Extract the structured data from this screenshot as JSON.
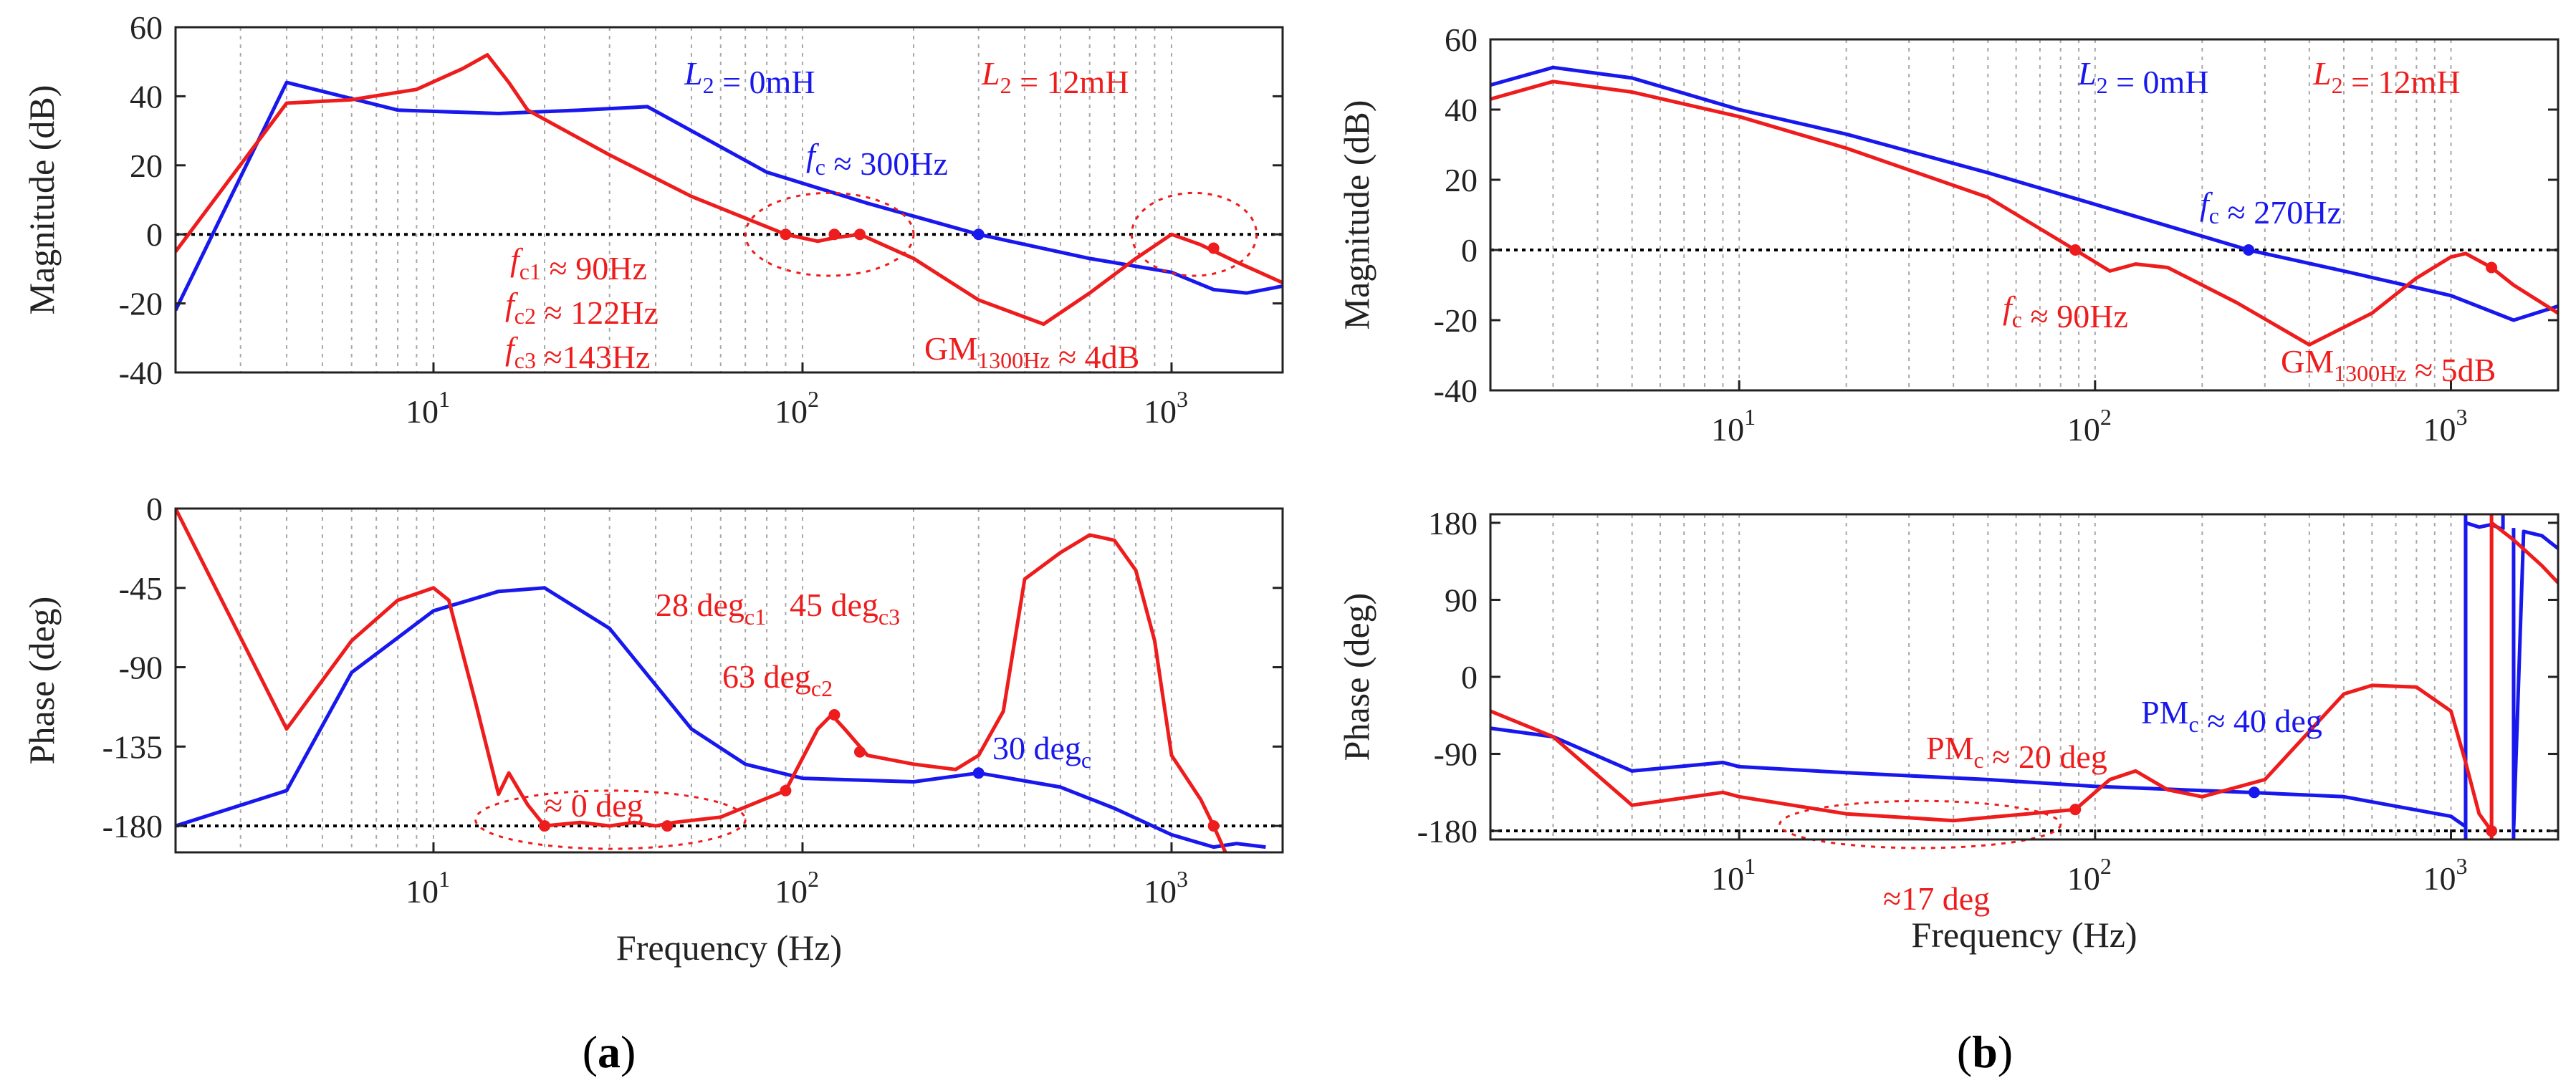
{
  "panels": [
    {
      "id": "a",
      "label_open": "(",
      "label_letter": "a",
      "label_close": ")"
    },
    {
      "id": "b",
      "label_open": "(",
      "label_letter": "b",
      "label_close": ")"
    }
  ],
  "colors": {
    "blue": "#1818ee",
    "red": "#ee1c1c",
    "axis": "#222222",
    "grid": "#a8a8a8"
  },
  "chart_data": [
    {
      "id": "a-magnitude",
      "type": "line",
      "xscale": "log",
      "xlim": [
        2,
        2000
      ],
      "ylim": [
        -40,
        60
      ],
      "yticks": [
        -40,
        -20,
        0,
        20,
        40,
        60
      ],
      "ytick_labels": [
        "-40",
        "-20",
        "0",
        "20",
        "40",
        "60"
      ],
      "xticks": [
        10,
        100,
        1000
      ],
      "xtick_base": "10",
      "xtick_exps": [
        "1",
        "2",
        "3"
      ],
      "xlabel": "",
      "ylabel": "Magnitude (dB)",
      "grid": true,
      "reference_line": 0,
      "series": [
        {
          "name": "L2 = 0mH",
          "color": "blue",
          "x": [
            2,
            4,
            8,
            15,
            25,
            38,
            50,
            80,
            150,
            300,
            600,
            1000,
            1300,
            1600,
            2000
          ],
          "y": [
            -22,
            44,
            36,
            35,
            36,
            37,
            30,
            18,
            9,
            0,
            -7,
            -11,
            -16,
            -17,
            -15
          ]
        },
        {
          "name": "L2 = 12mH",
          "color": "red",
          "x": [
            2,
            4,
            6,
            9,
            12,
            14,
            16,
            18,
            30,
            50,
            90,
            110,
            122,
            143,
            200,
            300,
            450,
            600,
            800,
            1000,
            1200,
            1500,
            2000
          ],
          "y": [
            -5,
            38,
            39,
            42,
            48,
            52,
            44,
            36,
            23,
            11,
            0,
            -2,
            -1,
            0,
            -7,
            -19,
            -26,
            -17,
            -7,
            0,
            -3,
            -8,
            -14
          ]
        }
      ],
      "markers": [
        {
          "color": "blue",
          "x": 300,
          "y": 0
        },
        {
          "color": "red",
          "x": 90,
          "y": 0
        },
        {
          "color": "red",
          "x": 122,
          "y": 0
        },
        {
          "color": "red",
          "x": 143,
          "y": 0
        },
        {
          "color": "red",
          "x": 1300,
          "y": -4
        }
      ],
      "ellipses": [
        {
          "x": [
            70,
            200
          ],
          "y": [
            -12,
            12
          ]
        },
        {
          "x": 780,
          "x2": 1700,
          "y": [
            -12,
            12
          ]
        }
      ],
      "annotations": [
        {
          "id": "leg_blue",
          "color": "blue",
          "parts": [
            {
              "t": "L",
              "i": true
            },
            {
              "t": "2",
              "s": true
            },
            {
              "t": " = 0mH"
            }
          ]
        },
        {
          "id": "leg_red",
          "color": "red",
          "parts": [
            {
              "t": "L",
              "i": true
            },
            {
              "t": "2",
              "s": true
            },
            {
              "t": " = 12mH"
            }
          ]
        },
        {
          "id": "fc",
          "color": "blue",
          "parts": [
            {
              "t": "f",
              "i": true
            },
            {
              "t": "c",
              "s": true
            },
            {
              "t": " ≈ 300Hz"
            }
          ]
        },
        {
          "id": "fc1",
          "color": "red",
          "parts": [
            {
              "t": "f",
              "i": true
            },
            {
              "t": "c1",
              "s": true
            },
            {
              "t": " ≈ 90Hz"
            }
          ]
        },
        {
          "id": "fc2",
          "color": "red",
          "parts": [
            {
              "t": "f",
              "i": true
            },
            {
              "t": "c2",
              "s": true
            },
            {
              "t": " ≈ 122Hz"
            }
          ]
        },
        {
          "id": "fc3",
          "color": "red",
          "parts": [
            {
              "t": "f",
              "i": true
            },
            {
              "t": "c3",
              "s": true
            },
            {
              "t": " ≈143Hz"
            }
          ]
        },
        {
          "id": "gm",
          "color": "red",
          "parts": [
            {
              "t": "GM"
            },
            {
              "t": "1300Hz",
              "s": true
            },
            {
              "t": " ≈ 4dB"
            }
          ]
        }
      ]
    },
    {
      "id": "a-phase",
      "type": "line",
      "xscale": "log",
      "xlim": [
        2,
        2000
      ],
      "ylim": [
        -195,
        0
      ],
      "yticks": [
        -180,
        -135,
        -90,
        -45,
        0
      ],
      "ytick_labels": [
        "-180",
        "-135",
        "-90",
        "-45",
        "0"
      ],
      "xticks": [
        10,
        100,
        1000
      ],
      "xtick_base": "10",
      "xtick_exps": [
        "1",
        "2",
        "3"
      ],
      "xlabel": "Frequency (Hz)",
      "ylabel": "Phase (deg)",
      "grid": true,
      "reference_line": -180,
      "series": [
        {
          "name": "L2 = 0mH",
          "color": "blue",
          "x": [
            2,
            4,
            6,
            10,
            15,
            20,
            30,
            50,
            70,
            100,
            200,
            300,
            500,
            700,
            1000,
            1300,
            1500,
            1800
          ],
          "y": [
            -180,
            -160,
            -93,
            -58,
            -47,
            -45,
            -68,
            -125,
            -145,
            -153,
            -155,
            -150,
            -158,
            -170,
            -185,
            -192,
            -190,
            -192
          ]
        },
        {
          "name": "L2 = 12mH",
          "color": "red",
          "x": [
            2,
            4,
            6,
            8,
            10,
            11,
            13,
            15,
            16,
            18,
            20,
            25,
            30,
            35,
            40,
            45,
            60,
            90,
            110,
            120,
            130,
            150,
            200,
            260,
            300,
            350,
            400,
            500,
            600,
            700,
            800,
            900,
            1000,
            1200,
            1300,
            1400
          ],
          "y": [
            0,
            -125,
            -75,
            -52,
            -45,
            -52,
            -110,
            -162,
            -150,
            -168,
            -180,
            -178,
            -180,
            -178,
            -180,
            -178,
            -175,
            -160,
            -125,
            -117,
            -125,
            -140,
            -145,
            -148,
            -140,
            -115,
            -40,
            -25,
            -15,
            -18,
            -35,
            -75,
            -140,
            -165,
            -180,
            -195
          ]
        }
      ],
      "markers": [
        {
          "color": "blue",
          "x": 300,
          "y": -150
        },
        {
          "color": "red",
          "x": 20,
          "y": -180
        },
        {
          "color": "red",
          "x": 43,
          "y": -180
        },
        {
          "color": "red",
          "x": 90,
          "y": -160
        },
        {
          "color": "red",
          "x": 122,
          "y": -117
        },
        {
          "color": "red",
          "x": 143,
          "y": -138
        },
        {
          "color": "red",
          "x": 1300,
          "y": -180
        }
      ],
      "ellipses": [
        {
          "x": [
            13,
            70
          ],
          "y": [
            -193,
            -160
          ]
        }
      ],
      "annotations": [
        {
          "id": "p28",
          "color": "red",
          "parts": [
            {
              "t": "28 deg"
            },
            {
              "t": "c1",
              "s": true
            }
          ]
        },
        {
          "id": "p45",
          "color": "red",
          "parts": [
            {
              "t": "45 deg"
            },
            {
              "t": "c3",
              "s": true
            }
          ]
        },
        {
          "id": "p63",
          "color": "red",
          "parts": [
            {
              "t": "63 deg"
            },
            {
              "t": "c2",
              "s": true
            }
          ]
        },
        {
          "id": "p30",
          "color": "blue",
          "parts": [
            {
              "t": "30 deg"
            },
            {
              "t": "c",
              "s": true
            }
          ]
        },
        {
          "id": "p0",
          "color": "red",
          "parts": [
            {
              "t": "≈ 0 deg"
            }
          ]
        }
      ]
    },
    {
      "id": "b-magnitude",
      "type": "line",
      "xscale": "log",
      "xlim": [
        2,
        2000
      ],
      "ylim": [
        -40,
        60
      ],
      "yticks": [
        -40,
        -20,
        0,
        20,
        40,
        60
      ],
      "ytick_labels": [
        "-40",
        "-20",
        "0",
        "20",
        "40",
        "60"
      ],
      "xticks": [
        10,
        100,
        1000
      ],
      "xtick_base": "10",
      "xtick_exps": [
        "1",
        "2",
        "3"
      ],
      "xlabel": "",
      "ylabel": "Magnitude (dB)",
      "grid": true,
      "reference_line": 0,
      "series": [
        {
          "name": "L2 = 0mH",
          "color": "blue",
          "x": [
            2,
            3,
            5,
            10,
            20,
            50,
            100,
            270,
            500,
            1000,
            1500,
            2000
          ],
          "y": [
            47,
            52,
            49,
            40,
            33,
            22,
            13,
            0,
            -6,
            -13,
            -20,
            -16
          ]
        },
        {
          "name": "L2 = 12mH",
          "color": "red",
          "x": [
            2,
            3,
            5,
            10,
            20,
            50,
            88,
            110,
            130,
            160,
            250,
            400,
            600,
            800,
            1000,
            1100,
            1300,
            1500,
            2000
          ],
          "y": [
            43,
            48,
            45,
            38,
            29,
            15,
            0,
            -6,
            -4,
            -5,
            -15,
            -27,
            -18,
            -8,
            -2,
            -1,
            -5,
            -10,
            -18
          ]
        }
      ],
      "markers": [
        {
          "color": "blue",
          "x": 270,
          "y": 0
        },
        {
          "color": "red",
          "x": 88,
          "y": 0
        },
        {
          "color": "red",
          "x": 1300,
          "y": -5
        }
      ],
      "ellipses": [],
      "annotations": [
        {
          "id": "leg_blue",
          "color": "blue",
          "parts": [
            {
              "t": "L",
              "i": true
            },
            {
              "t": "2",
              "s": true
            },
            {
              "t": " = 0mH"
            }
          ]
        },
        {
          "id": "leg_red",
          "color": "red",
          "parts": [
            {
              "t": "L",
              "i": true
            },
            {
              "t": "2",
              "s": true
            },
            {
              "t": " = 12mH"
            }
          ]
        },
        {
          "id": "fc",
          "color": "blue",
          "parts": [
            {
              "t": "f",
              "i": true
            },
            {
              "t": "c",
              "s": true
            },
            {
              "t": " ≈ 270Hz"
            }
          ]
        },
        {
          "id": "fcr",
          "color": "red",
          "parts": [
            {
              "t": "f",
              "i": true
            },
            {
              "t": "c",
              "s": true
            },
            {
              "t": " ≈ 90Hz"
            }
          ]
        },
        {
          "id": "gm",
          "color": "red",
          "parts": [
            {
              "t": "GM"
            },
            {
              "t": "1300Hz",
              "s": true
            },
            {
              "t": " ≈ 5dB"
            }
          ]
        }
      ]
    },
    {
      "id": "b-phase",
      "type": "line",
      "xscale": "log",
      "xlim": [
        2,
        2000
      ],
      "ylim": [
        -190,
        190
      ],
      "yticks": [
        -180,
        -90,
        0,
        90,
        180
      ],
      "ytick_labels": [
        "-180",
        "-90",
        "0",
        "90",
        "180"
      ],
      "xticks": [
        10,
        100,
        1000
      ],
      "xtick_base": "10",
      "xtick_exps": [
        "1",
        "2",
        "3"
      ],
      "xlabel": "Frequency (Hz)",
      "ylabel": "Phase (deg)",
      "grid": true,
      "reference_line": -180,
      "series": [
        {
          "name": "L2 = 0mH",
          "color": "blue",
          "x": [
            2,
            3,
            5,
            9,
            10,
            20,
            50,
            100,
            270,
            500,
            1000,
            1099,
            1100,
            1200,
            1300,
            1400,
            1500,
            1501,
            1600,
            1800,
            2000
          ],
          "y": [
            -60,
            -70,
            -110,
            -100,
            -105,
            -112,
            -120,
            -128,
            -135,
            -140,
            -163,
            -175,
            180,
            175,
            178,
            172,
            174,
            -175,
            170,
            165,
            150
          ],
          "breaks": [
            12,
            16
          ]
        },
        {
          "name": "L2 = 12mH",
          "color": "red",
          "x": [
            2,
            3,
            5,
            9,
            10,
            20,
            40,
            88,
            110,
            130,
            160,
            200,
            300,
            500,
            600,
            800,
            1000,
            1100,
            1200,
            1300,
            1301,
            1500,
            1800,
            2000
          ],
          "y": [
            -40,
            -70,
            -150,
            -135,
            -140,
            -160,
            -168,
            -155,
            -120,
            -110,
            -132,
            -140,
            -120,
            -20,
            -10,
            -12,
            -40,
            -100,
            -160,
            -180,
            180,
            160,
            130,
            110
          ],
          "breaks": [
            20
          ]
        }
      ],
      "markers": [
        {
          "color": "blue",
          "x": 280,
          "y": -135
        },
        {
          "color": "red",
          "x": 88,
          "y": -155
        },
        {
          "color": "red",
          "x": 1300,
          "y": -180
        }
      ],
      "ellipses": [
        {
          "x": [
            13,
            80
          ],
          "y": [
            -200,
            -145
          ]
        }
      ],
      "annotations": [
        {
          "id": "pm_blue",
          "color": "blue",
          "parts": [
            {
              "t": "PM"
            },
            {
              "t": "c",
              "s": true
            },
            {
              "t": " ≈ 40 deg"
            }
          ]
        },
        {
          "id": "pm_red",
          "color": "red",
          "parts": [
            {
              "t": "PM"
            },
            {
              "t": "c",
              "s": true
            },
            {
              "t": " ≈ 20 deg"
            }
          ]
        },
        {
          "id": "p17",
          "color": "red",
          "parts": [
            {
              "t": "≈17 deg"
            }
          ]
        }
      ]
    }
  ]
}
